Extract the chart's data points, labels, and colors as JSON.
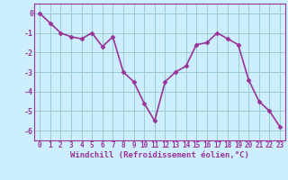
{
  "x": [
    0,
    1,
    2,
    3,
    4,
    5,
    6,
    7,
    8,
    9,
    10,
    11,
    12,
    13,
    14,
    15,
    16,
    17,
    18,
    19,
    20,
    21,
    22,
    23
  ],
  "y": [
    0.0,
    -0.5,
    -1.0,
    -1.2,
    -1.3,
    -1.0,
    -1.7,
    -1.2,
    -3.0,
    -3.5,
    -4.6,
    -5.5,
    -3.5,
    -3.0,
    -2.7,
    -1.6,
    -1.5,
    -1.0,
    -1.3,
    -1.6,
    -3.4,
    -4.5,
    -5.0,
    -5.8
  ],
  "line_color": "#993399",
  "marker_color": "#993399",
  "bg_color": "#cceeff",
  "grid_color": "#99cccc",
  "xlabel": "Windchill (Refroidissement éolien,°C)",
  "xlabel_color": "#993399",
  "xlim": [
    -0.5,
    23.5
  ],
  "ylim": [
    -6.5,
    0.5
  ],
  "xticks": [
    0,
    1,
    2,
    3,
    4,
    5,
    6,
    7,
    8,
    9,
    10,
    11,
    12,
    13,
    14,
    15,
    16,
    17,
    18,
    19,
    20,
    21,
    22,
    23
  ],
  "yticks": [
    0,
    -1,
    -2,
    -3,
    -4,
    -5,
    -6
  ],
  "tick_color": "#993399",
  "spine_color": "#993399",
  "tick_fontsize": 5.5,
  "xlabel_fontsize": 6.5,
  "marker_size": 2.5,
  "line_width": 1.2
}
